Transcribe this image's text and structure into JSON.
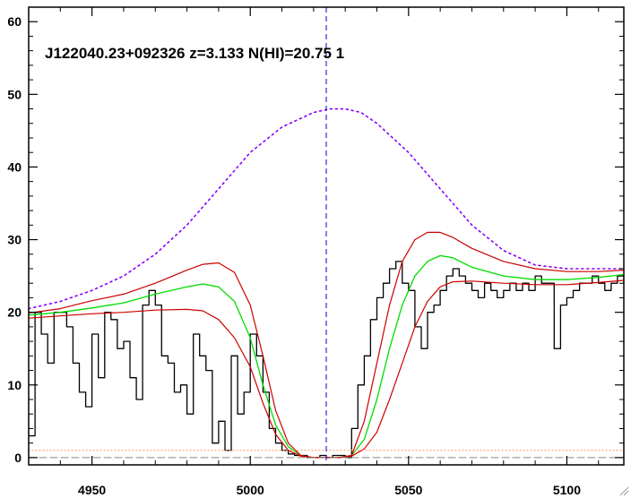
{
  "chart_data": {
    "type": "line",
    "title": "J122040.23+092326 z=3.133 N(HI)=20.75 1",
    "xlabel": "",
    "ylabel": "",
    "xlim": [
      4930,
      5118
    ],
    "ylim": [
      -1,
      62
    ],
    "xticks": [
      4950,
      5000,
      5050,
      5100
    ],
    "xtick_labels": [
      "4950",
      "5000",
      "5050",
      "5100"
    ],
    "yticks": [
      0,
      10,
      20,
      30,
      40,
      50,
      60
    ],
    "ytick_labels": [
      "0",
      "10",
      "20",
      "30",
      "40",
      "50",
      "60"
    ],
    "grid": false,
    "legend": false,
    "vertical_marker_x": 5024,
    "colors": {
      "flux": "#000000",
      "continuum": "#8800ff",
      "model": "#00dd00",
      "model_bounds": "#cc0000",
      "marker": "#0000cc",
      "error": "#ff9966"
    },
    "series": [
      {
        "role": "flux",
        "style": "step",
        "x": [
          4930,
          4932,
          4934,
          4936,
          4938,
          4940,
          4942,
          4944,
          4946,
          4948,
          4950,
          4952,
          4954,
          4956,
          4958,
          4960,
          4962,
          4964,
          4966,
          4968,
          4970,
          4972,
          4974,
          4976,
          4978,
          4980,
          4982,
          4984,
          4986,
          4988,
          4990,
          4992,
          4994,
          4996,
          4998,
          5000,
          5002,
          5004,
          5006,
          5008,
          5010,
          5012,
          5014,
          5016,
          5018,
          5020,
          5022,
          5024,
          5026,
          5028,
          5030,
          5032,
          5034,
          5036,
          5038,
          5040,
          5042,
          5044,
          5046,
          5048,
          5050,
          5052,
          5054,
          5056,
          5058,
          5060,
          5062,
          5064,
          5066,
          5068,
          5070,
          5072,
          5074,
          5076,
          5078,
          5080,
          5082,
          5084,
          5086,
          5088,
          5090,
          5092,
          5094,
          5096,
          5098,
          5100,
          5102,
          5104,
          5106,
          5108,
          5110,
          5112,
          5114,
          5116,
          5118
        ],
        "y": [
          3,
          20,
          17,
          13,
          20,
          20,
          18,
          13,
          9,
          7,
          17,
          11,
          20,
          19,
          15,
          16,
          11,
          8,
          21,
          23,
          21,
          14,
          13,
          9,
          10,
          6,
          17,
          14,
          12,
          2,
          5,
          1,
          14,
          6,
          9,
          17,
          14,
          9,
          4,
          2,
          1,
          0.5,
          0.3,
          0.3,
          0,
          0,
          0.3,
          0,
          0.3,
          0.3,
          0,
          4,
          10,
          14,
          19,
          22,
          24,
          26,
          27,
          24,
          23,
          18,
          15,
          20,
          21,
          23,
          25,
          26,
          25,
          24,
          23,
          22,
          24,
          23,
          22,
          23,
          24,
          23,
          24,
          23,
          25,
          24,
          24,
          15,
          21,
          22,
          23,
          24,
          24,
          25,
          24,
          23,
          24,
          25,
          24
        ]
      },
      {
        "role": "continuum",
        "style": "dotted",
        "x": [
          4930,
          4940,
          4950,
          4960,
          4970,
          4980,
          4990,
          5000,
          5010,
          5020,
          5025,
          5030,
          5035,
          5040,
          5050,
          5060,
          5070,
          5080,
          5090,
          5100,
          5110,
          5118
        ],
        "y": [
          20.5,
          21.5,
          23,
          25,
          28,
          32,
          37,
          42,
          45.5,
          47.5,
          48,
          48,
          47.5,
          46,
          42,
          37,
          32,
          28.5,
          26.5,
          26,
          26,
          26
        ]
      },
      {
        "role": "model",
        "style": "solid",
        "x": [
          4930,
          4940,
          4950,
          4960,
          4970,
          4980,
          4985,
          4990,
          4995,
          5000,
          5004,
          5008,
          5012,
          5016,
          5020,
          5024,
          5028,
          5032,
          5036,
          5040,
          5044,
          5048,
          5052,
          5056,
          5060,
          5064,
          5070,
          5080,
          5090,
          5100,
          5110,
          5118
        ],
        "y": [
          19.6,
          20,
          20.6,
          21.3,
          22.5,
          23.5,
          23.9,
          23.5,
          21.5,
          16.5,
          10,
          4.5,
          1.5,
          0.3,
          0,
          0,
          0,
          0.3,
          2.5,
          8,
          15,
          21,
          25,
          27,
          27.8,
          27.5,
          26.2,
          25,
          24.5,
          24.5,
          24.8,
          25.2
        ]
      },
      {
        "role": "model_upper",
        "style": "solid",
        "x": [
          4930,
          4940,
          4950,
          4960,
          4970,
          4980,
          4985,
          4990,
          4995,
          5000,
          5004,
          5008,
          5012,
          5016,
          5020,
          5024,
          5028,
          5032,
          5036,
          5040,
          5044,
          5048,
          5052,
          5056,
          5060,
          5064,
          5070,
          5080,
          5090,
          5100,
          5110,
          5118
        ],
        "y": [
          19.9,
          20.5,
          21.6,
          22.5,
          24,
          25.8,
          26.6,
          26.8,
          25.5,
          21,
          14,
          6.5,
          2,
          0.3,
          0,
          0,
          0,
          0.3,
          5,
          13,
          21,
          27,
          30,
          31,
          31,
          30.3,
          28.8,
          27,
          26,
          25.6,
          25.6,
          25.8
        ]
      },
      {
        "role": "model_lower",
        "style": "solid",
        "x": [
          4930,
          4940,
          4950,
          4960,
          4970,
          4980,
          4985,
          4990,
          4995,
          5000,
          5004,
          5008,
          5012,
          5016,
          5020,
          5024,
          5028,
          5032,
          5036,
          5040,
          5044,
          5048,
          5052,
          5056,
          5060,
          5064,
          5070,
          5080,
          5090,
          5100,
          5110,
          5118
        ],
        "y": [
          19.2,
          19.5,
          19.8,
          20,
          20.3,
          20.4,
          20.2,
          19,
          16.5,
          12.5,
          7.5,
          3.2,
          1,
          0.2,
          0,
          0,
          0,
          0.2,
          1.2,
          3.5,
          8,
          13,
          18,
          21.5,
          23.5,
          24.2,
          24.3,
          24,
          23.8,
          23.8,
          24.1,
          24.4
        ]
      },
      {
        "role": "error",
        "style": "dotted",
        "x": [
          4930,
          4970,
          5000,
          5030,
          5060,
          5090,
          5118
        ],
        "y": [
          1,
          1,
          1,
          1,
          1,
          1,
          1
        ]
      },
      {
        "role": "zero",
        "style": "dashed",
        "x": [
          4930,
          5118
        ],
        "y": [
          0,
          0
        ]
      }
    ]
  }
}
